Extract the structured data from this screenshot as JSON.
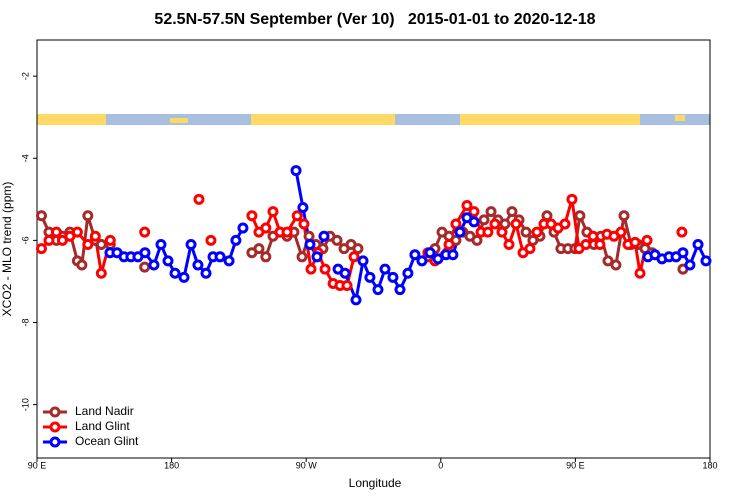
{
  "chart_data": {
    "type": "line",
    "title": "52.5N-57.5N September (Ver 10)   2015-01-01 to 2020-12-18",
    "x_label": "Longitude",
    "y_label": "XCO2 - MLO trend (ppm)",
    "xlim": [
      90,
      540
    ],
    "ylim": [
      -11.3,
      -1.12
    ],
    "xticks": [
      {
        "value": 90,
        "label": "90 E"
      },
      {
        "value": 180,
        "label": "180"
      },
      {
        "value": 270,
        "label": "90 W"
      },
      {
        "value": 360,
        "label": "0"
      },
      {
        "value": 450,
        "label": "90 E"
      },
      {
        "value": 540,
        "label": "180"
      }
    ],
    "yticks": [
      -10,
      -8,
      -6,
      -4,
      -2
    ],
    "legend": "lower left",
    "grid": false,
    "series": [
      {
        "name": "Land Nadir",
        "color": "#a52a2a",
        "x": [
          93,
          98,
          103,
          107,
          112,
          117,
          120,
          124,
          129,
          133,
          139,
          null,
          162,
          null,
          233.7,
          238.4,
          243,
          247.8,
          252.5,
          257.2,
          261.8,
          267.2,
          271.9,
          276.5,
          281.2,
          285.9,
          290.6,
          295.3,
          300,
          304.6,
          null,
          351.4,
          356.1,
          360.8,
          365.5,
          370.1,
          374.8,
          379.5,
          384.2,
          388.9,
          393.6,
          398.2,
          402.9,
          407.6,
          412.3,
          417,
          421.6,
          426.3,
          431,
          435.7,
          440.3,
          445,
          449.7,
          453,
          457.7,
          462.4,
          467.1,
          471.8,
          477.1,
          482.5,
          487.2,
          491.8,
          496.5,
          501.2,
          null,
          521.9
        ],
        "values": [
          -5.4,
          -5.8,
          -6.0,
          -5.9,
          -5.8,
          -6.5,
          -6.6,
          -5.4,
          -6.0,
          -6.1,
          -6.1,
          null,
          -6.65,
          null,
          -6.3,
          -6.2,
          -6.4,
          -5.9,
          -5.8,
          -5.9,
          -5.8,
          -6.4,
          -5.9,
          -6.1,
          -6.2,
          -5.9,
          -6.0,
          -6.2,
          -6.1,
          -6.2,
          null,
          -6.4,
          -6.2,
          -5.8,
          -5.9,
          -6.0,
          -5.8,
          -5.9,
          -6.0,
          -5.5,
          -5.3,
          -5.5,
          -5.6,
          -5.3,
          -5.5,
          -5.8,
          -6.0,
          -5.9,
          -5.4,
          -5.8,
          -6.2,
          -6.2,
          -6.2,
          -5.4,
          -5.8,
          -6.1,
          -5.9,
          -6.5,
          -6.6,
          -5.4,
          -6.1,
          -6.1,
          -6.2,
          -6.3,
          null,
          -6.7
        ]
      },
      {
        "name": "Land Glint",
        "color": "#ff0000",
        "x": [
          93,
          98,
          103,
          107,
          112,
          117,
          124,
          129,
          133,
          139,
          null,
          162,
          null,
          198.3,
          null,
          206.3,
          null,
          233.7,
          238.4,
          243,
          247.8,
          252.5,
          257.2,
          264,
          268.5,
          273.2,
          277.9,
          282.6,
          288,
          292.6,
          297.3,
          302,
          null,
          351.4,
          356.1,
          365.5,
          370.1,
          377.5,
          382.2,
          386.9,
          391.5,
          396.2,
          400.9,
          405.6,
          410.3,
          415,
          419.6,
          424.3,
          429,
          433.7,
          438.4,
          443,
          447.7,
          452.4,
          457,
          461.8,
          466.4,
          471.1,
          475.8,
          480.5,
          485.2,
          489.9,
          493.2,
          497.9,
          null,
          521.2
        ],
        "values": [
          -6.2,
          -6.0,
          -5.8,
          -6.0,
          -5.9,
          -5.8,
          -6.1,
          -5.9,
          -6.8,
          -6.0,
          null,
          -5.8,
          null,
          -5.0,
          null,
          -6.0,
          null,
          -5.4,
          -5.8,
          -5.7,
          -5.3,
          -5.8,
          -5.8,
          -5.4,
          -5.6,
          -6.7,
          -6.3,
          -6.7,
          -7.05,
          -7.1,
          -7.1,
          -6.4,
          null,
          -6.3,
          -6.5,
          -6.1,
          -5.6,
          -5.15,
          -5.3,
          -5.8,
          -5.8,
          -5.6,
          -5.8,
          -6.1,
          -5.6,
          -6.3,
          -6.2,
          -5.8,
          -5.6,
          -5.6,
          -5.7,
          -5.6,
          -5.0,
          -6.2,
          -6.1,
          -5.9,
          -6.1,
          -5.85,
          -5.9,
          -5.8,
          -6.1,
          -6.05,
          -6.8,
          -6.0,
          null,
          -5.8
        ]
      },
      {
        "name": "Ocean Glint",
        "color": "#0000ff",
        "x": [
          138.8,
          143.5,
          148.2,
          152.8,
          157.5,
          162.2,
          168.2,
          172.9,
          177.6,
          182.3,
          188.3,
          193,
          197.6,
          203,
          207.7,
          212.4,
          218.4,
          223,
          227.7,
          null,
          263.2,
          267.8,
          272.5,
          277.2,
          281.9,
          null,
          291.3,
          296,
          303.3,
          308,
          312.6,
          318,
          322.7,
          328,
          332.7,
          338,
          342.7,
          347.4,
          352.8,
          358.1,
          363.5,
          368.1,
          372.8,
          377.5,
          382.2,
          null,
          498.5,
          503.2,
          507.9,
          512.6,
          517.3,
          521.9,
          526.6,
          532,
          537.3
        ],
        "values": [
          -6.3,
          -6.3,
          -6.4,
          -6.4,
          -6.4,
          -6.3,
          -6.6,
          -6.1,
          -6.5,
          -6.8,
          -6.9,
          -6.1,
          -6.6,
          -6.8,
          -6.4,
          -6.4,
          -6.5,
          -6.0,
          -5.7,
          null,
          -4.3,
          -5.2,
          -6.1,
          -6.4,
          -5.9,
          null,
          -6.7,
          -6.8,
          -7.45,
          -6.5,
          -6.9,
          -7.2,
          -6.7,
          -6.9,
          -7.2,
          -6.8,
          -6.35,
          -6.5,
          -6.3,
          -6.45,
          -6.35,
          -6.35,
          -5.8,
          -5.45,
          -5.55,
          null,
          -6.4,
          -6.35,
          -6.45,
          -6.4,
          -6.4,
          -6.3,
          -6.6,
          -6.1,
          -6.5
        ]
      }
    ]
  }
}
